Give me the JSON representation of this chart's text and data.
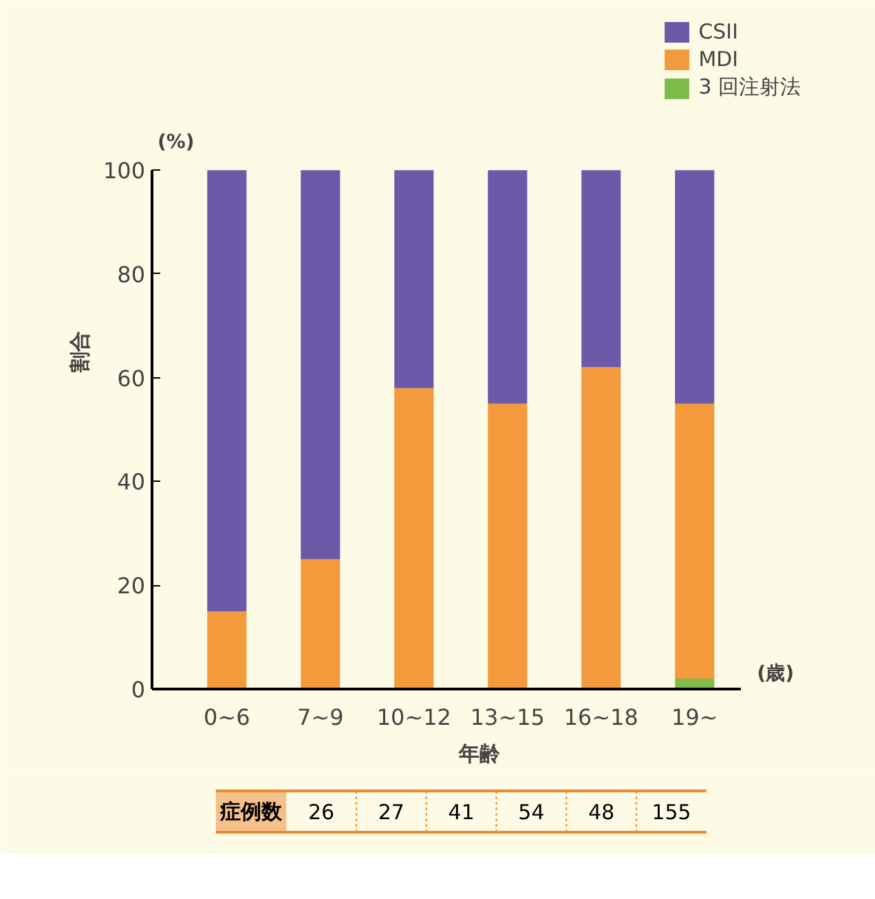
{
  "chart_data": {
    "type": "bar",
    "stacked": true,
    "ylabel": "割合",
    "xlabel": "年齢",
    "categories": [
      "0~6",
      "7~9",
      "10~12",
      "13~15",
      "16~18",
      "19~"
    ],
    "series": [
      {
        "name": "3 回注射法",
        "color": "#7dbb4a",
        "values": [
          0,
          0,
          0,
          0,
          0,
          2
        ]
      },
      {
        "name": "MDI",
        "color": "#f39a3c",
        "values": [
          15,
          25,
          58,
          55,
          62,
          53
        ]
      },
      {
        "name": "CSII",
        "color": "#6a5aa8",
        "values": [
          85,
          75,
          42,
          45,
          38,
          45
        ]
      }
    ],
    "ylim": [
      0,
      100
    ],
    "yticks": [
      0,
      20,
      40,
      60,
      80,
      100
    ],
    "grid": false,
    "legend": "top right",
    "annotations": [
      "(%)",
      "(歳)",
      "症例数",
      "26",
      "27",
      "41",
      "54",
      "48",
      "155"
    ]
  }
}
